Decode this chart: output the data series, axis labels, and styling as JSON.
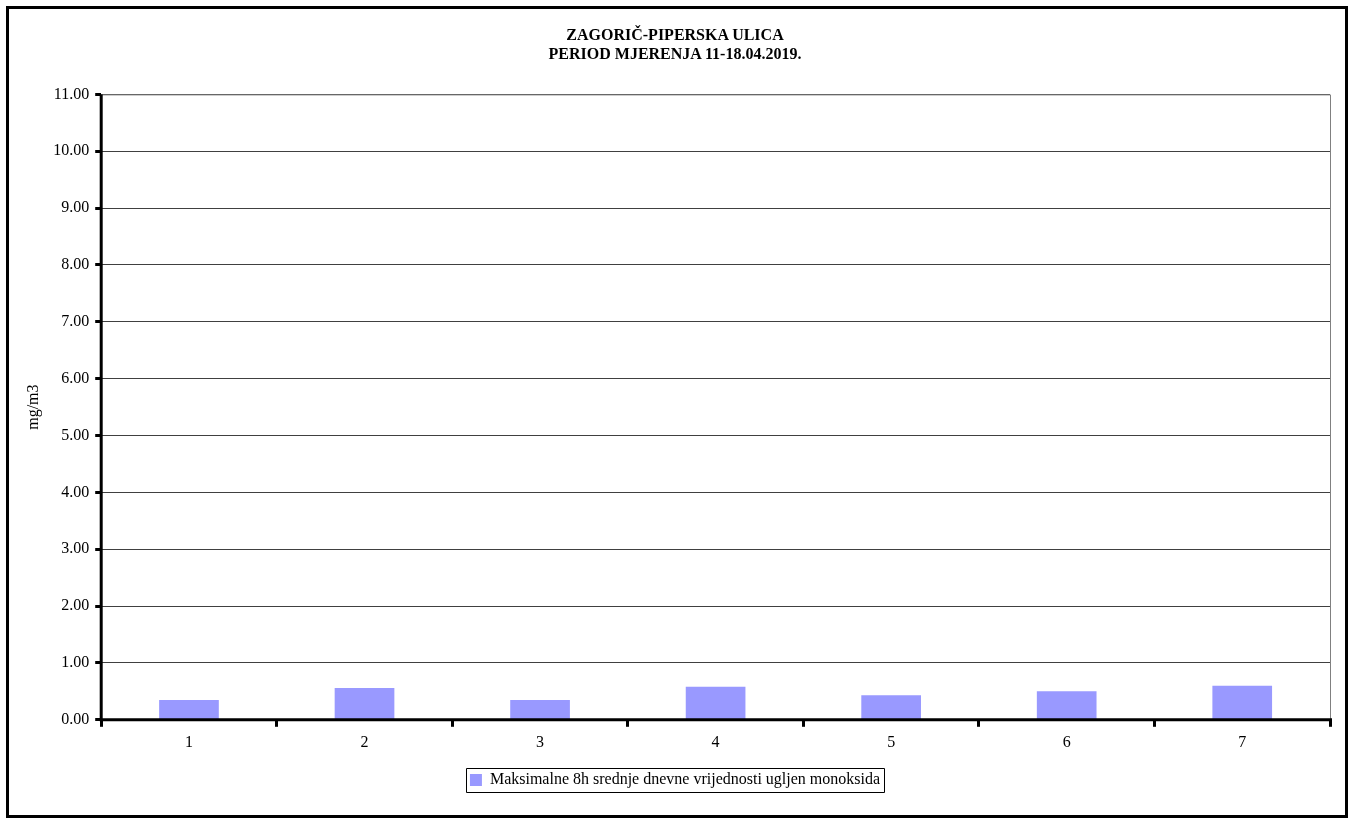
{
  "chart_data": {
    "type": "bar",
    "title": "ZAGORIČ-PIPERSKA ULICA\nPERIOD MJERENJA 11-18.04.2019.",
    "ylabel": "mg/m3",
    "categories": [
      "1",
      "2",
      "3",
      "4",
      "5",
      "6",
      "7"
    ],
    "series": [
      {
        "name": "Maksimalne 8h srednje dnevne vrijednosti ugljen monoksida",
        "color": "#9999ff",
        "values": [
          0.35,
          0.56,
          0.35,
          0.58,
          0.43,
          0.5,
          0.6
        ]
      }
    ],
    "ylim": [
      0,
      11
    ],
    "yticks": [
      {
        "value": 0,
        "label": "0.00"
      },
      {
        "value": 1,
        "label": "1.00"
      },
      {
        "value": 2,
        "label": "2.00"
      },
      {
        "value": 3,
        "label": "3.00"
      },
      {
        "value": 4,
        "label": "4.00"
      },
      {
        "value": 5,
        "label": "5.00"
      },
      {
        "value": 6,
        "label": "6.00"
      },
      {
        "value": 7,
        "label": "7.00"
      },
      {
        "value": 8,
        "label": "8.00"
      },
      {
        "value": 9,
        "label": "9.00"
      },
      {
        "value": 10,
        "label": "10.00"
      },
      {
        "value": 11,
        "label": "11.00"
      }
    ],
    "grid": "y",
    "legend": "bottom"
  }
}
